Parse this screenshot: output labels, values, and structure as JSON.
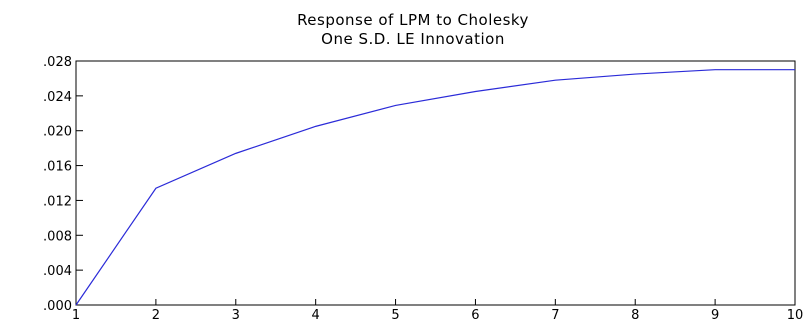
{
  "chart_data": {
    "type": "line",
    "title": "Response of LPM to Cholesky",
    "subtitle": "One S.D. LE Innovation",
    "xlabel": "",
    "ylabel": "",
    "x": [
      1,
      2,
      3,
      4,
      5,
      6,
      7,
      8,
      9,
      10
    ],
    "series": [
      {
        "values": [
          0.0,
          0.0134,
          0.0174,
          0.0205,
          0.0229,
          0.0245,
          0.0258,
          0.0265,
          0.027,
          0.027
        ]
      }
    ],
    "xlim": [
      1,
      10
    ],
    "ylim": [
      0,
      0.028
    ],
    "x_ticks": [
      "1",
      "2",
      "3",
      "4",
      "5",
      "6",
      "7",
      "8",
      "9",
      "10"
    ],
    "y_ticks": [
      0,
      0.004,
      0.008,
      0.012,
      0.016,
      0.02,
      0.024,
      0.028
    ],
    "y_tick_labels": [
      ".000",
      ".004",
      ".008",
      ".012",
      ".016",
      ".020",
      ".024",
      ".028"
    ],
    "grid": false,
    "legend": "none",
    "line_color": "#2b2bd8",
    "axis_color": "#000000"
  }
}
